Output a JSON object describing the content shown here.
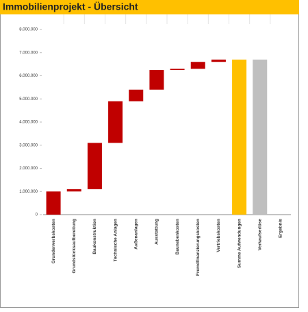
{
  "chart_data": {
    "type": "waterfall",
    "title": "Immobilienprojekt - Übersicht",
    "categories": [
      "Grunderwerbskosten",
      "Grundstücksaufbereitung",
      "Baukonstruktion",
      "Technische Anlagen",
      "Außenanlagen",
      "Ausstattung",
      "Baunebenkosten",
      "Fremdfinanzierungskosten",
      "Vertriebskosten",
      "Summe Aufwendungen",
      "Verkaufserlöse",
      "Ergebnis"
    ],
    "values": [
      1000000,
      100000,
      2000000,
      1800000,
      500000,
      850000,
      50000,
      300000,
      100000,
      6700000,
      6700000,
      0
    ],
    "bar_kinds": [
      "delta",
      "delta",
      "delta",
      "delta",
      "delta",
      "delta",
      "delta",
      "delta",
      "delta",
      "total",
      "total",
      "total"
    ],
    "colors": [
      "#c00000",
      "#c00000",
      "#c00000",
      "#c00000",
      "#c00000",
      "#c00000",
      "#c00000",
      "#c00000",
      "#c00000",
      "#ffc000",
      "#bfbfbf",
      "#bfbfbf"
    ],
    "ylim": [
      0,
      8000000
    ],
    "yticks": [
      0,
      {
        "value": 1000000,
        "label": "1.000.000"
      },
      {
        "value": 2000000,
        "label": "2.000.000"
      },
      {
        "value": 3000000,
        "label": "3.000.000"
      },
      {
        "value": 4000000,
        "label": "4.000.000"
      },
      {
        "value": 5000000,
        "label": "5.000.000"
      },
      {
        "value": 6000000,
        "label": "6.000.000"
      },
      {
        "value": 7000000,
        "label": "7.000.000"
      },
      {
        "value": 8000000,
        "label": "8.000.000"
      }
    ],
    "title_color": "#ffc000"
  }
}
